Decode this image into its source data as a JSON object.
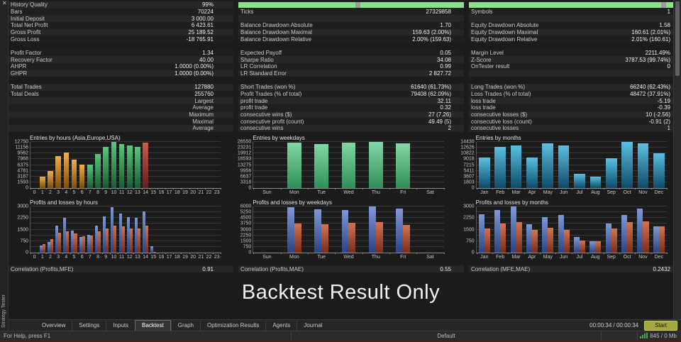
{
  "panel": {
    "title": "Strategy Tester",
    "close_icon": "✕"
  },
  "watermark": "Backtest Result Only",
  "palette": {
    "orange": [
      "#f0ae4e",
      "#7c4e0a"
    ],
    "green": [
      "#58c87e",
      "#195c32"
    ],
    "red": [
      "#cc5a48",
      "#641f18"
    ],
    "mint": [
      "#83d7a6",
      "#2f8f58"
    ],
    "teal": [
      "#5ac0e2",
      "#0e4a68"
    ],
    "profit": [
      "#7e99d6",
      "#2c4382"
    ],
    "loss": [
      "#d6734f",
      "#7a2d1c"
    ]
  },
  "stats_rows": [
    {
      "cells": [
        {
          "type": "lv",
          "label": "History Quality",
          "value": "99%"
        },
        {
          "type": "bar",
          "notch": 52
        },
        {
          "type": "bar",
          "notch": 94
        }
      ]
    },
    {
      "cells": [
        {
          "type": "lv",
          "label": "Bars",
          "value": "70224"
        },
        {
          "type": "lv",
          "label": "Ticks",
          "value": "27329858"
        },
        {
          "type": "lv",
          "label": "Symbols",
          "value": "1"
        }
      ]
    },
    {
      "cells": [
        {
          "type": "lv",
          "label": "Initial Deposit",
          "value": "3 000.00"
        },
        {
          "type": "empty"
        },
        {
          "type": "empty"
        }
      ]
    },
    {
      "cells": [
        {
          "type": "lv",
          "label": "Total Net Profit",
          "value": "6 423.61"
        },
        {
          "type": "lv",
          "label": "Balance Drawdown Absolute",
          "value": "1.70"
        },
        {
          "type": "lv",
          "label": "Equity Drawdown Absolute",
          "value": "1.58"
        }
      ]
    },
    {
      "cells": [
        {
          "type": "lv",
          "label": "Gross Profit",
          "value": "25 189.52"
        },
        {
          "type": "lv",
          "label": "Balance Drawdown Maximal",
          "value": "159.63 (2.00%)"
        },
        {
          "type": "lv",
          "label": "Equity Drawdown Maximal",
          "value": "160.61 (2.01%)"
        }
      ]
    },
    {
      "cells": [
        {
          "type": "lv",
          "label": "Gross Loss",
          "value": "-18 765.91"
        },
        {
          "type": "lv",
          "label": "Balance Drawdown Relative",
          "value": "2.00% (159.63)"
        },
        {
          "type": "lv",
          "label": "Equity Drawdown Relative",
          "value": "2.01% (160.61)"
        }
      ]
    },
    {
      "gap": true
    },
    {
      "cells": [
        {
          "type": "lv",
          "label": "Profit Factor",
          "value": "1.34"
        },
        {
          "type": "lv",
          "label": "Expected Payoff",
          "value": "0.05"
        },
        {
          "type": "lv",
          "label": "Margin Level",
          "value": "2211.49%"
        }
      ]
    },
    {
      "cells": [
        {
          "type": "lv",
          "label": "Recovery Factor",
          "value": "40.00"
        },
        {
          "type": "lv",
          "label": "Sharpe Ratio",
          "value": "34.08"
        },
        {
          "type": "lv",
          "label": "Z-Score",
          "value": "3787.53 (99.74%)"
        }
      ]
    },
    {
      "cells": [
        {
          "type": "lv",
          "label": "AHPR",
          "value": "1.0000 (0.00%)"
        },
        {
          "type": "lv",
          "label": "LR Correlation",
          "value": "0.99"
        },
        {
          "type": "lv",
          "label": "OnTester result",
          "value": "0"
        }
      ]
    },
    {
      "cells": [
        {
          "type": "lv",
          "label": "GHPR",
          "value": "1.0000 (0.00%)"
        },
        {
          "type": "lv",
          "label": "LR Standard Error",
          "value": "2 827.72"
        },
        {
          "type": "empty"
        }
      ]
    },
    {
      "gap": true
    },
    {
      "cells": [
        {
          "type": "lv",
          "label": "Total Trades",
          "value": "127880"
        },
        {
          "type": "lv",
          "label": "Short Trades (won %)",
          "value": "61640 (61.73%)"
        },
        {
          "type": "lv",
          "label": "Long Trades (won %)",
          "value": "66240 (62.43%)"
        }
      ]
    },
    {
      "cells": [
        {
          "type": "lv",
          "label": "Total Deals",
          "value": "255760"
        },
        {
          "type": "lv",
          "label": "Profit Trades (% of total)",
          "value": "79408 (62.09%)"
        },
        {
          "type": "lv",
          "label": "Loss Trades (% of total)",
          "value": "48472 (37.91%)"
        }
      ]
    },
    {
      "cells": [
        {
          "type": "rlabel",
          "label": "Largest"
        },
        {
          "type": "lv",
          "label": "profit trade",
          "value": "32.11"
        },
        {
          "type": "lv",
          "label": "loss trade",
          "value": "-5.19"
        }
      ]
    },
    {
      "cells": [
        {
          "type": "rlabel",
          "label": "Average"
        },
        {
          "type": "lv",
          "label": "profit trade",
          "value": "0.32"
        },
        {
          "type": "lv",
          "label": "loss trade",
          "value": "-0.39"
        }
      ]
    },
    {
      "cells": [
        {
          "type": "rlabel",
          "label": "Maximum"
        },
        {
          "type": "lv",
          "label": "consecutive wins ($)",
          "value": "27 (7.26)"
        },
        {
          "type": "lv",
          "label": "consecutive losses ($)",
          "value": "10 (-2.56)"
        }
      ]
    },
    {
      "cells": [
        {
          "type": "rlabel",
          "label": "Maximal"
        },
        {
          "type": "lv",
          "label": "consecutive profit (count)",
          "value": "49.49 (5)"
        },
        {
          "type": "lv",
          "label": "consecutive loss (count)",
          "value": "-0.91 (2)"
        }
      ]
    },
    {
      "cells": [
        {
          "type": "rlabel",
          "label": "Average"
        },
        {
          "type": "lv",
          "label": "consecutive wins",
          "value": "2"
        },
        {
          "type": "lv",
          "label": "consecutive losses",
          "value": "1"
        }
      ]
    }
  ],
  "charts": [
    {
      "id": "entries-by-hours",
      "row": 1,
      "type": "bar",
      "title": "Entries by hours (Asia,Europe,USA)",
      "ymax": 12750,
      "ytick_labels": [
        "12750",
        "11156",
        "9562",
        "7968",
        "6375",
        "4781",
        "3187",
        "1593",
        "0"
      ],
      "categories": [
        "0",
        "1",
        "2",
        "3",
        "4",
        "5",
        "6",
        "7",
        "8",
        "9",
        "10",
        "11",
        "12",
        "13",
        "14",
        "15",
        "16",
        "17",
        "18",
        "19",
        "20",
        "21",
        "22",
        "23"
      ],
      "bar_width": 0.68,
      "bar_colors": [
        "",
        "orange",
        "orange",
        "orange",
        "orange",
        "orange",
        "orange",
        "green",
        "green",
        "green",
        "green",
        "green",
        "green",
        "green",
        "red",
        "",
        "",
        "",
        "",
        "",
        "",
        "",
        "",
        ""
      ],
      "series": [
        {
          "name": "entries",
          "values": [
            0,
            3100,
            4800,
            8900,
            9900,
            7800,
            6400,
            6400,
            9400,
            11300,
            12750,
            12100,
            11800,
            11400,
            12500,
            0,
            0,
            0,
            0,
            0,
            0,
            0,
            0,
            0
          ]
        }
      ]
    },
    {
      "id": "entries-by-weekdays",
      "row": 1,
      "type": "bar",
      "title": "Entries by weekdays",
      "ymax": 26550,
      "ytick_labels": [
        "26550",
        "23231",
        "19912",
        "16593",
        "13275",
        "9956",
        "6637",
        "3318",
        "0"
      ],
      "categories": [
        "Sun",
        "Mon",
        "Tue",
        "Wed",
        "Thu",
        "Fri",
        "Sat"
      ],
      "bar_width": 0.52,
      "series": [
        {
          "name": "entries",
          "palette": "mint",
          "values": [
            0,
            26100,
            25300,
            26200,
            26550,
            25900,
            0
          ]
        }
      ]
    },
    {
      "id": "entries-by-months",
      "row": 1,
      "type": "bar",
      "title": "Entries by months",
      "ymax": 14430,
      "ytick_labels": [
        "14430",
        "12626",
        "10822",
        "9018",
        "7215",
        "5411",
        "3607",
        "1803",
        "0"
      ],
      "categories": [
        "Jan",
        "Feb",
        "Mar",
        "Apr",
        "May",
        "Jun",
        "Jul",
        "Aug",
        "Sep",
        "Oct",
        "Nov",
        "Dec"
      ],
      "bar_width": 0.7,
      "series": [
        {
          "name": "entries",
          "palette": "teal",
          "values": [
            9500,
            12800,
            13300,
            9600,
            14000,
            13400,
            4400,
            3500,
            9400,
            14430,
            13900,
            10800
          ]
        }
      ]
    },
    {
      "id": "profits-losses-by-hours",
      "row": 2,
      "type": "bar",
      "title": "Profits and losses by hours",
      "ymax": 3000,
      "ytick_labels": [
        "3000",
        "2250",
        "1500",
        "750",
        "0"
      ],
      "categories": [
        "0",
        "1",
        "2",
        "3",
        "4",
        "5",
        "6",
        "7",
        "8",
        "9",
        "10",
        "11",
        "12",
        "13",
        "14",
        "15",
        "16",
        "17",
        "18",
        "19",
        "20",
        "21",
        "22",
        "23"
      ],
      "bar_width": 0.36,
      "series": [
        {
          "name": "profit",
          "palette": "profit",
          "values": [
            0,
            450,
            700,
            1750,
            2250,
            1450,
            1000,
            1150,
            1750,
            2350,
            2950,
            2550,
            2300,
            2250,
            2700,
            400,
            0,
            0,
            0,
            0,
            0,
            0,
            0,
            0
          ]
        },
        {
          "name": "loss",
          "palette": "loss",
          "values": [
            0,
            550,
            900,
            1300,
            1400,
            1250,
            1050,
            1100,
            1400,
            1550,
            1750,
            1700,
            1550,
            1550,
            1750,
            60,
            0,
            0,
            0,
            0,
            0,
            0,
            0,
            0
          ]
        }
      ]
    },
    {
      "id": "profits-losses-by-weekdays",
      "row": 2,
      "type": "bar",
      "title": "Profits and losses by weekdays",
      "ymax": 6000,
      "ytick_labels": [
        "6000",
        "5250",
        "4500",
        "3750",
        "3000",
        "2250",
        "1500",
        "750",
        "0"
      ],
      "categories": [
        "Sun",
        "Mon",
        "Tue",
        "Wed",
        "Thu",
        "Fri",
        "Sat"
      ],
      "bar_width": 0.26,
      "series": [
        {
          "name": "profit",
          "palette": "profit",
          "values": [
            0,
            5950,
            5600,
            5550,
            6000,
            5700,
            0
          ]
        },
        {
          "name": "loss",
          "palette": "loss",
          "values": [
            0,
            3800,
            3700,
            3900,
            3950,
            3600,
            0
          ]
        }
      ]
    },
    {
      "id": "profits-losses-by-months",
      "row": 2,
      "type": "bar",
      "title": "Profits and losses by months",
      "ymax": 3000,
      "ytick_labels": [
        "3000",
        "2250",
        "1500",
        "750",
        "0"
      ],
      "categories": [
        "Jan",
        "Feb",
        "Mar",
        "Apr",
        "May",
        "Jun",
        "Jul",
        "Aug",
        "Sep",
        "Oct",
        "Nov",
        "Dec"
      ],
      "bar_width": 0.36,
      "series": [
        {
          "name": "profit",
          "palette": "profit",
          "values": [
            2500,
            2750,
            3000,
            1850,
            2300,
            2450,
            1000,
            750,
            1900,
            2450,
            2850,
            1700
          ]
        },
        {
          "name": "loss",
          "palette": "loss",
          "values": [
            1550,
            1900,
            2000,
            1500,
            1600,
            1500,
            800,
            760,
            1550,
            2000,
            2050,
            1730
          ]
        }
      ]
    }
  ],
  "correlations": [
    {
      "label": "Correlation (Profits,MFE)",
      "value": "0.91"
    },
    {
      "label": "Correlation (Profits,MAE)",
      "value": "0.55"
    },
    {
      "label": "Correlation (MFE,MAE)",
      "value": "0.2432"
    }
  ],
  "tabs": [
    {
      "label": "Overview"
    },
    {
      "label": "Settings"
    },
    {
      "label": "Inputs"
    },
    {
      "label": "Backtest",
      "active": true
    },
    {
      "label": "Graph"
    },
    {
      "label": "Optimization Results"
    },
    {
      "label": "Agents"
    },
    {
      "label": "Journal"
    }
  ],
  "tester": {
    "time": "00:00:34 / 00:00:34",
    "start_label": "Start"
  },
  "statusbar": {
    "help": "For Help, press F1",
    "profile": "Default",
    "memory": "845 / 0 Mb"
  }
}
